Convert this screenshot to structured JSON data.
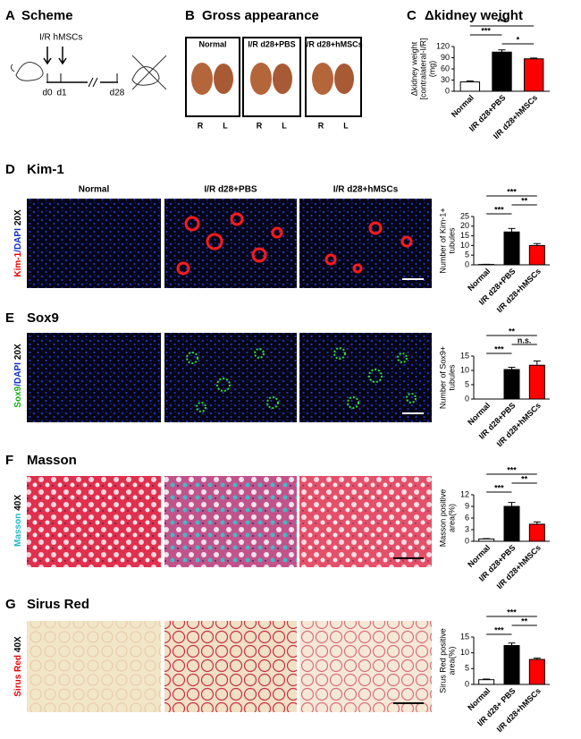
{
  "panels": [
    {
      "letter": "A",
      "title": "Scheme"
    },
    {
      "letter": "B",
      "title": "Gross appearance"
    },
    {
      "letter": "C",
      "title": "Δkidney weight"
    },
    {
      "letter": "D",
      "title": "Kim-1"
    },
    {
      "letter": "E",
      "title": "Sox9"
    },
    {
      "letter": "F",
      "title": "Masson"
    },
    {
      "letter": "G",
      "title": "Sirus Red"
    }
  ],
  "scheme": {
    "treatment": "I/R hMSCs",
    "days": [
      "d0",
      "d1",
      "d28"
    ]
  },
  "gross": {
    "groups": [
      "Normal",
      "I/R d28+PBS",
      "I/R d28+hMSCs"
    ],
    "sides": [
      "R",
      "L"
    ]
  },
  "micrographs": {
    "columns": [
      "Normal",
      "I/R d28+PBS",
      "I/R d28+hMSCs"
    ],
    "rows": [
      {
        "stain": "Kim-1",
        "counterstain": "/DAPI",
        "magnification": "20X"
      },
      {
        "stain": "Sox9",
        "counterstain": "/DAPI",
        "magnification": "20X"
      },
      {
        "stain": "Masson",
        "magnification": "40X"
      },
      {
        "stain": "Sirus Red",
        "magnification": "40X"
      }
    ]
  },
  "chart_data": [
    {
      "type": "bar",
      "ylabel": [
        "Δkidney weight",
        "[contralateral-I/R]",
        "(mg)"
      ],
      "categories": [
        "Normal",
        "I/R d28+PBS",
        "I/R d28+hMSCs"
      ],
      "values": [
        25,
        105,
        87
      ],
      "errors": [
        3,
        6,
        2
      ],
      "colors": [
        "#ffffff",
        "#000000",
        "#ff0000"
      ],
      "ylim": [
        0,
        120
      ],
      "yticks": [
        0,
        30,
        60,
        90,
        120
      ],
      "significance": [
        {
          "from": 1,
          "to": 2,
          "label": "*"
        },
        {
          "from": 0,
          "to": 1,
          "label": "***"
        },
        {
          "from": 0,
          "to": 2,
          "label": "***"
        }
      ]
    },
    {
      "type": "bar",
      "ylabel": [
        "Number of Kim-1+",
        "tubules"
      ],
      "categories": [
        "Normal",
        "I/R d28+PBS",
        "I/R d28+hMSCs"
      ],
      "values": [
        0.2,
        17,
        10
      ],
      "errors": [
        0.1,
        1.8,
        1
      ],
      "colors": [
        "#ffffff",
        "#000000",
        "#ff0000"
      ],
      "ylim": [
        0,
        25
      ],
      "yticks": [
        0,
        5,
        10,
        15,
        20,
        25
      ],
      "significance": [
        {
          "from": 0,
          "to": 1,
          "label": "***"
        },
        {
          "from": 1,
          "to": 2,
          "label": "**"
        },
        {
          "from": 0,
          "to": 2,
          "label": "***"
        }
      ]
    },
    {
      "type": "bar",
      "ylabel": [
        "Number of Sox9+",
        "tubules"
      ],
      "categories": [
        "Normal",
        "I/R d28+PBS",
        "I/R d28+hMSCs"
      ],
      "values": [
        0,
        10.3,
        11.8
      ],
      "errors": [
        0,
        0.8,
        1.5
      ],
      "colors": [
        "#ffffff",
        "#000000",
        "#ff0000"
      ],
      "ylim": [
        0,
        15
      ],
      "yticks": [
        0,
        5,
        10,
        15
      ],
      "significance": [
        {
          "from": 0,
          "to": 1,
          "label": "***"
        },
        {
          "from": 1,
          "to": 2,
          "label": "n.s."
        },
        {
          "from": 0,
          "to": 2,
          "label": "**"
        }
      ]
    },
    {
      "type": "bar",
      "ylabel": [
        "Masson positive",
        "area(%)"
      ],
      "categories": [
        "Normal",
        "I/R d28+PBS",
        "I/R d28+hMSCs"
      ],
      "values": [
        0.6,
        9,
        4.4
      ],
      "errors": [
        0.1,
        1,
        0.6
      ],
      "colors": [
        "#ffffff",
        "#000000",
        "#ff0000"
      ],
      "ylim": [
        0,
        12
      ],
      "yticks": [
        0,
        3,
        6,
        9,
        12
      ],
      "significance": [
        {
          "from": 0,
          "to": 1,
          "label": "***"
        },
        {
          "from": 1,
          "to": 2,
          "label": "**"
        },
        {
          "from": 0,
          "to": 2,
          "label": "***"
        }
      ]
    },
    {
      "type": "bar",
      "ylabel": [
        "Sirus Red positive",
        "area(%)"
      ],
      "categories": [
        "Normal",
        "I/R d28+ PBS",
        "I/R d28+hMSCs"
      ],
      "values": [
        1.5,
        12.3,
        7.9
      ],
      "errors": [
        0.2,
        0.8,
        0.4
      ],
      "colors": [
        "#ffffff",
        "#000000",
        "#ff0000"
      ],
      "ylim": [
        0,
        15
      ],
      "yticks": [
        0,
        5,
        10,
        15
      ],
      "significance": [
        {
          "from": 0,
          "to": 1,
          "label": "***"
        },
        {
          "from": 1,
          "to": 2,
          "label": "**"
        },
        {
          "from": 0,
          "to": 2,
          "label": "***"
        }
      ]
    }
  ]
}
